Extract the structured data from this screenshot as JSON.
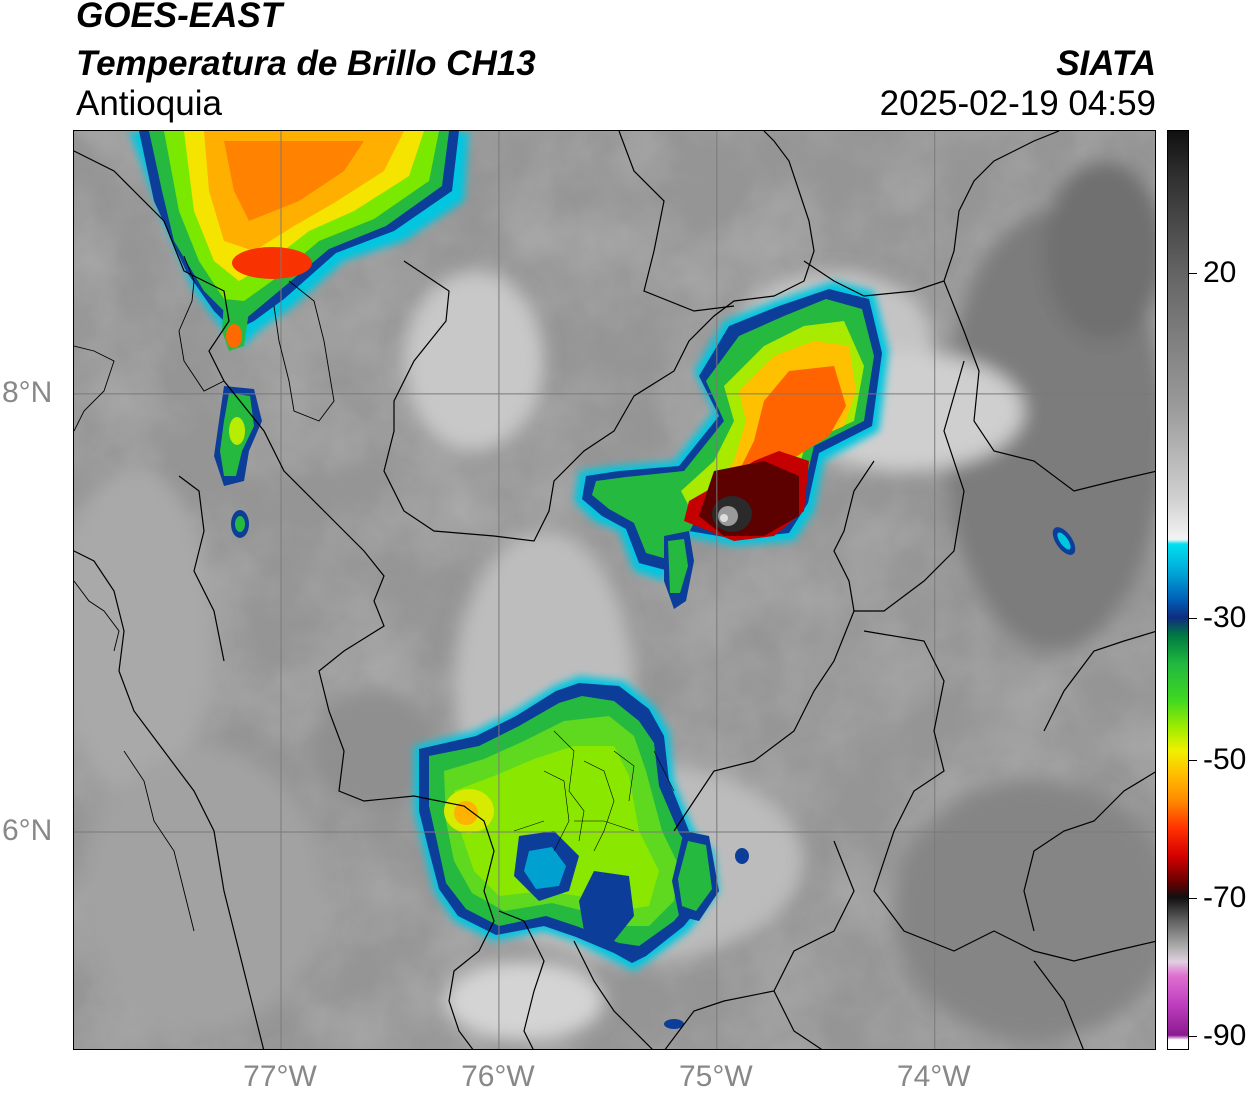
{
  "header": {
    "line1": "GOES-EAST",
    "line2": "Temperatura de Brillo CH13",
    "line3": "Antioquia",
    "agency": "SIATA",
    "datetime": "2025-02-19 04:59"
  },
  "map": {
    "lon_range": [
      -77.95,
      -72.98
    ],
    "lat_range": [
      5.0,
      9.2
    ],
    "x_ticks": [
      {
        "lon": -77,
        "label": "77°W"
      },
      {
        "lon": -76,
        "label": "76°W"
      },
      {
        "lon": -75,
        "label": "75°W"
      },
      {
        "lon": -74,
        "label": "74°W"
      }
    ],
    "y_ticks": [
      {
        "lat": 8,
        "label": "8°N"
      },
      {
        "lat": 6,
        "label": "6°N"
      }
    ],
    "grid": true,
    "colors": {
      "land_gray": "#9a9a9a",
      "border": "#000000",
      "grid": "#7a7a7a"
    }
  },
  "colorbar": {
    "ticks": [
      {
        "value": 20,
        "label": "20"
      },
      {
        "value": -30,
        "label": "-30"
      },
      {
        "value": -50,
        "label": "-50"
      },
      {
        "value": -70,
        "label": "-70"
      },
      {
        "value": -90,
        "label": "-90"
      }
    ]
  }
}
